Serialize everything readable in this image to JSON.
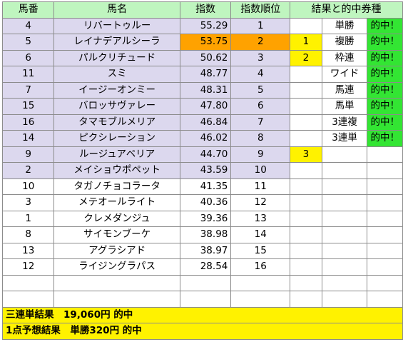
{
  "headers": {
    "horse_no": "馬番",
    "horse_name": "馬名",
    "index": "指数",
    "rank": "指数順位",
    "result": "結果と的中券種"
  },
  "rows": [
    {
      "no": "4",
      "name": "リバートゥルー",
      "index": "55.29",
      "rank": "1",
      "finish": "",
      "bet": "単勝",
      "hit": "的中！"
    },
    {
      "no": "5",
      "name": "レイナデアルシーラ",
      "index": "53.75",
      "rank": "2",
      "finish": "1",
      "bet": "複勝",
      "hit": "的中！"
    },
    {
      "no": "6",
      "name": "パルクリチュード",
      "index": "50.62",
      "rank": "3",
      "finish": "2",
      "bet": "枠連",
      "hit": "的中！"
    },
    {
      "no": "11",
      "name": "スミ",
      "index": "48.77",
      "rank": "4",
      "finish": "",
      "bet": "ワイド",
      "hit": "的中！"
    },
    {
      "no": "7",
      "name": "イージーオンミー",
      "index": "48.31",
      "rank": "5",
      "finish": "",
      "bet": "馬連",
      "hit": "的中！"
    },
    {
      "no": "15",
      "name": "バロッサヴァレー",
      "index": "47.80",
      "rank": "6",
      "finish": "",
      "bet": "馬単",
      "hit": "的中！"
    },
    {
      "no": "16",
      "name": "タマモブルメリア",
      "index": "46.84",
      "rank": "7",
      "finish": "",
      "bet": "3連複",
      "hit": "的中！"
    },
    {
      "no": "14",
      "name": "ピクシレーション",
      "index": "46.02",
      "rank": "8",
      "finish": "",
      "bet": "3連単",
      "hit": "的中！"
    },
    {
      "no": "9",
      "name": "ルージュアベリア",
      "index": "44.70",
      "rank": "9",
      "finish": "3",
      "bet": "",
      "hit": ""
    },
    {
      "no": "2",
      "name": "メイショウポペット",
      "index": "43.59",
      "rank": "10",
      "finish": "",
      "bet": "",
      "hit": ""
    },
    {
      "no": "10",
      "name": "タガノチョコラータ",
      "index": "41.35",
      "rank": "11",
      "finish": "",
      "bet": "",
      "hit": ""
    },
    {
      "no": "3",
      "name": "メテオールライト",
      "index": "40.36",
      "rank": "12",
      "finish": "",
      "bet": "",
      "hit": ""
    },
    {
      "no": "1",
      "name": "クレメダンジュ",
      "index": "39.36",
      "rank": "13",
      "finish": "",
      "bet": "",
      "hit": ""
    },
    {
      "no": "8",
      "name": "サイモンブーケ",
      "index": "38.98",
      "rank": "14",
      "finish": "",
      "bet": "",
      "hit": ""
    },
    {
      "no": "13",
      "name": "アグラシアド",
      "index": "38.97",
      "rank": "15",
      "finish": "",
      "bet": "",
      "hit": ""
    },
    {
      "no": "12",
      "name": "ライジングラパス",
      "index": "28.54",
      "rank": "16",
      "finish": "",
      "bet": "",
      "hit": ""
    }
  ],
  "footer": {
    "sanrentan_result": "三連単結果　19,060円 的中",
    "one_point_result": "1点予想結果　単勝320円 的中"
  },
  "colors": {
    "header_bg": "#bff5bf",
    "shaded_row_bg": "#dcd8ee",
    "orange_highlight": "#ffa200",
    "yellow_highlight": "#fff200",
    "green_highlight": "#33e533"
  }
}
